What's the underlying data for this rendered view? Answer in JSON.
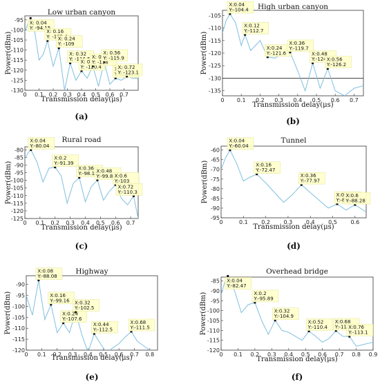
{
  "chart_data": [
    {
      "type": "line",
      "panel_label": "(a)",
      "title": "Low urban canyon",
      "xlabel": "Transmission delay(μs)",
      "ylabel": "Power(dBm)",
      "xlim": [
        0,
        0.8
      ],
      "ylim": [
        -130,
        -93
      ],
      "xticks": [
        0,
        0.1,
        0.2,
        0.3,
        0.4,
        0.5,
        0.6,
        0.7
      ],
      "yticks": [
        -95,
        -100,
        -105,
        -110,
        -115,
        -120,
        -125,
        -130
      ],
      "x": [
        0,
        0.02,
        0.04,
        0.07,
        0.1,
        0.13,
        0.16,
        0.2,
        0.24,
        0.28,
        0.32,
        0.36,
        0.4,
        0.44,
        0.48,
        0.52,
        0.56,
        0.6,
        0.64,
        0.68,
        0.72,
        0.76,
        0.8
      ],
      "y": [
        -101,
        -97,
        -94.15,
        -101,
        -115,
        -112,
        -105.4,
        -118,
        -109,
        -130,
        -116.5,
        -125,
        -120.4,
        -124,
        -118,
        -128,
        -115.9,
        -127,
        -124,
        -125,
        -123.1,
        -124,
        -124
      ],
      "datatips": [
        {
          "x": 0.04,
          "y": -94.15,
          "label_x": "X: 0.04",
          "label_y": "Y: -94.15"
        },
        {
          "x": 0.16,
          "y": -105.4,
          "label_x": "X: 0.16",
          "label_y": "Y: -105.4"
        },
        {
          "x": 0.24,
          "y": -109,
          "label_x": "X: 0.24",
          "label_y": "Y: -109"
        },
        {
          "x": 0.32,
          "y": -116.5,
          "label_x": "X: 0.32",
          "label_y": "Y: -116.5"
        },
        {
          "x": 0.4,
          "y": -120.4,
          "label_x": "X: 0.4",
          "label_y": "Y: -120.4"
        },
        {
          "x": 0.48,
          "y": -118,
          "label_x": "X: 0.48",
          "label_y": "Y: -118"
        },
        {
          "x": 0.56,
          "y": -115.9,
          "label_x": "X: 0.56",
          "label_y": "Y: -115.9"
        },
        {
          "x": 0.64,
          "y": -124,
          "label_x": "X: 0.64",
          "label_y": "Y: -124."
        },
        {
          "x": 0.72,
          "y": -123.1,
          "label_x": "X: 0.72",
          "label_y": "Y: -123.1"
        }
      ]
    },
    {
      "type": "line",
      "panel_label": "(b)",
      "title": "High urban canyon",
      "xlabel": "Transmission delay(μs)",
      "ylabel": "Power(dBm)",
      "xlim": [
        0,
        0.75
      ],
      "ylim": [
        -137,
        -103
      ],
      "xticks": [
        0,
        0.1,
        0.2,
        0.3,
        0.4,
        0.5,
        0.6,
        0.7
      ],
      "yticks": [
        -105,
        -110,
        -115,
        -120,
        -125,
        -130,
        -135
      ],
      "hline": -130,
      "x": [
        0,
        0.02,
        0.04,
        0.07,
        0.1,
        0.12,
        0.15,
        0.2,
        0.24,
        0.28,
        0.32,
        0.36,
        0.4,
        0.44,
        0.48,
        0.52,
        0.56,
        0.6,
        0.65,
        0.7,
        0.75
      ],
      "y": [
        -112,
        -107,
        -104.4,
        -108,
        -117,
        -112.7,
        -119,
        -115,
        -121.6,
        -122,
        -120,
        -119.7,
        -127,
        -135,
        -124,
        -134,
        -126.2,
        -135,
        -137,
        -134,
        -133
      ],
      "datatips": [
        {
          "x": 0.04,
          "y": -104.4,
          "label_x": "X:0.04",
          "label_y": "Y:-104.4"
        },
        {
          "x": 0.12,
          "y": -112.7,
          "label_x": "X:0.12",
          "label_y": "Y:-112.7"
        },
        {
          "x": 0.24,
          "y": -121.6,
          "label_x": "X:0.24",
          "label_y": "Y:-121.6"
        },
        {
          "x": 0.36,
          "y": -119.7,
          "label_x": "X:0.36",
          "label_y": "Y:-119.7"
        },
        {
          "x": 0.48,
          "y": -124,
          "label_x": "X:0.48",
          "label_y": "Y:-124"
        },
        {
          "x": 0.56,
          "y": -126.2,
          "label_x": "X:0.56",
          "label_y": "Y:-126.2"
        }
      ]
    },
    {
      "type": "line",
      "panel_label": "(c)",
      "title": "Rural road",
      "xlabel": "Transmission delay(μs)",
      "ylabel": "Power(dBm)",
      "xlim": [
        0,
        0.75
      ],
      "ylim": [
        -125,
        -78
      ],
      "xticks": [
        0,
        0.1,
        0.2,
        0.3,
        0.4,
        0.5,
        0.6,
        0.7
      ],
      "yticks": [
        -80,
        -85,
        -90,
        -95,
        -100,
        -105,
        -110,
        -115,
        -120,
        -125
      ],
      "x": [
        0,
        0.02,
        0.04,
        0.08,
        0.12,
        0.16,
        0.2,
        0.24,
        0.28,
        0.32,
        0.36,
        0.4,
        0.44,
        0.48,
        0.52,
        0.56,
        0.6,
        0.64,
        0.68,
        0.72,
        0.75
      ],
      "y": [
        -86,
        -82,
        -80.04,
        -88,
        -101,
        -92,
        -91.39,
        -97,
        -115,
        -102,
        -98.16,
        -114,
        -104,
        -99.84,
        -113,
        -107,
        -103,
        -112,
        -116,
        -110.3,
        -125
      ],
      "datatips": [
        {
          "x": 0.04,
          "y": -80.04,
          "label_x": "X:0.04",
          "label_y": "Y:-80.04"
        },
        {
          "x": 0.2,
          "y": -91.39,
          "label_x": "X:0.2",
          "label_y": "Y:-91.39"
        },
        {
          "x": 0.36,
          "y": -98.16,
          "label_x": "X:0.36",
          "label_y": "Y:-98.16"
        },
        {
          "x": 0.48,
          "y": -99.84,
          "label_x": "X:0.48",
          "label_y": "Y:-99.84"
        },
        {
          "x": 0.6,
          "y": -103,
          "label_x": "X:0.6",
          "label_y": "Y:-103"
        },
        {
          "x": 0.72,
          "y": -110.3,
          "label_x": "X:0.72",
          "label_y": "Y:-110.3"
        }
      ]
    },
    {
      "type": "line",
      "panel_label": "(d)",
      "title": "Tunnel",
      "xlabel": "Transmission delay(μs)",
      "ylabel": "Power(dBm)",
      "xlim": [
        0,
        0.65
      ],
      "ylim": [
        -95,
        -58
      ],
      "xticks": [
        0,
        0.1,
        0.2,
        0.3,
        0.4,
        0.5,
        0.6
      ],
      "yticks": [
        -60,
        -65,
        -70,
        -75,
        -80,
        -85,
        -90,
        -95
      ],
      "x": [
        0,
        0.02,
        0.04,
        0.07,
        0.1,
        0.13,
        0.16,
        0.2,
        0.24,
        0.28,
        0.32,
        0.36,
        0.4,
        0.44,
        0.48,
        0.52,
        0.56,
        0.6,
        0.65
      ],
      "y": [
        -70,
        -64,
        -60.04,
        -67,
        -76,
        -74,
        -72.47,
        -77,
        -82,
        -87,
        -83,
        -77.97,
        -82,
        -86,
        -90,
        -87.88,
        -91,
        -88.28,
        -92
      ],
      "datatips": [
        {
          "x": 0.04,
          "y": -60.04,
          "label_x": "X:0.04",
          "label_y": "Y:-60.04"
        },
        {
          "x": 0.16,
          "y": -72.47,
          "label_x": "X:0.16",
          "label_y": "Y:-72.47"
        },
        {
          "x": 0.36,
          "y": -77.97,
          "label_x": "X:0.36",
          "label_y": "Y:-77.97"
        },
        {
          "x": 0.52,
          "y": -87.88,
          "label_x": "X:0.52",
          "label_y": "Y:-87.88"
        },
        {
          "x": 0.6,
          "y": -88.28,
          "label_x": "X:0.6",
          "label_y": "Y:-88.28"
        }
      ]
    },
    {
      "type": "line",
      "panel_label": "(e)",
      "title": "Highway",
      "xlabel": "Transmission delay(μs)",
      "ylabel": "Power(dBm)",
      "xlim": [
        0,
        0.85
      ],
      "ylim": [
        -120,
        -86
      ],
      "xticks": [
        0,
        0.1,
        0.2,
        0.3,
        0.4,
        0.5,
        0.6,
        0.7,
        0.8
      ],
      "yticks": [
        -90,
        -95,
        -100,
        -105,
        -110,
        -115,
        -120
      ],
      "x": [
        0,
        0.04,
        0.08,
        0.12,
        0.16,
        0.2,
        0.24,
        0.28,
        0.32,
        0.36,
        0.4,
        0.44,
        0.48,
        0.52,
        0.56,
        0.6,
        0.64,
        0.68,
        0.72,
        0.76,
        0.8
      ],
      "y": [
        -95,
        -104,
        -88.08,
        -106,
        -99.16,
        -112,
        -107.6,
        -112,
        -102.5,
        -113,
        -121,
        -112.5,
        -117,
        -121,
        -119,
        -117,
        -114,
        -111.5,
        -116,
        -118,
        -120
      ],
      "datatips": [
        {
          "x": 0.08,
          "y": -88.08,
          "label_x": "X:0.08",
          "label_y": "Y:-88.08"
        },
        {
          "x": 0.16,
          "y": -99.16,
          "label_x": "X:0.16",
          "label_y": "Y:-99.16"
        },
        {
          "x": 0.24,
          "y": -107.6,
          "label_x": "X:0.24",
          "label_y": "Y:-107.6"
        },
        {
          "x": 0.32,
          "y": -102.5,
          "label_x": "X:0.32",
          "label_y": "Y:-102.5"
        },
        {
          "x": 0.44,
          "y": -112.5,
          "label_x": "X:0.44",
          "label_y": "Y:-112.5"
        },
        {
          "x": 0.68,
          "y": -111.5,
          "label_x": "X:0.68",
          "label_y": "Y:-111.5"
        }
      ]
    },
    {
      "type": "line",
      "panel_label": "(f)",
      "title": "Overhead bridge",
      "xlabel": "Transmission delay(μs)",
      "ylabel": "Power(dBm)",
      "xlim": [
        0,
        0.9
      ],
      "ylim": [
        -120,
        -83
      ],
      "xticks": [
        0,
        0.1,
        0.2,
        0.3,
        0.4,
        0.5,
        0.6,
        0.7,
        0.8,
        0.9
      ],
      "yticks": [
        -85,
        -90,
        -95,
        -100,
        -105,
        -110,
        -115,
        -120
      ],
      "x": [
        0,
        0.02,
        0.04,
        0.08,
        0.12,
        0.16,
        0.2,
        0.24,
        0.28,
        0.32,
        0.36,
        0.4,
        0.44,
        0.48,
        0.52,
        0.56,
        0.6,
        0.64,
        0.68,
        0.72,
        0.76,
        0.8,
        0.85,
        0.9
      ],
      "y": [
        -92,
        -86,
        -82.47,
        -90,
        -101,
        -97,
        -95.89,
        -105,
        -112,
        -104.9,
        -110,
        -111,
        -113,
        -115,
        -110.4,
        -113,
        -116,
        -114,
        -110.2,
        -113,
        -113.1,
        -118,
        -117,
        -116
      ],
      "datatips": [
        {
          "x": 0.04,
          "y": -82.47,
          "label_x": "X:0.04",
          "label_y": "Y:-82.47"
        },
        {
          "x": 0.2,
          "y": -95.89,
          "label_x": "X:0.2",
          "label_y": "Y:-95.89"
        },
        {
          "x": 0.32,
          "y": -104.9,
          "label_x": "X:0.32",
          "label_y": "Y:-104.9"
        },
        {
          "x": 0.52,
          "y": -110.4,
          "label_x": "X:0.52",
          "label_y": "Y:-110.4"
        },
        {
          "x": 0.68,
          "y": -110.2,
          "label_x": "X:0.68",
          "label_y": "Y:-110.2"
        },
        {
          "x": 0.76,
          "y": -113.1,
          "label_x": "X:0.76",
          "label_y": "Y:-113.1"
        }
      ]
    }
  ],
  "colors": {
    "line": "#7fbfe0",
    "axis": "#333333",
    "datatip_bg": "#ffffcc",
    "datatip_border": "#e6e6a0",
    "hline": "#444444"
  }
}
